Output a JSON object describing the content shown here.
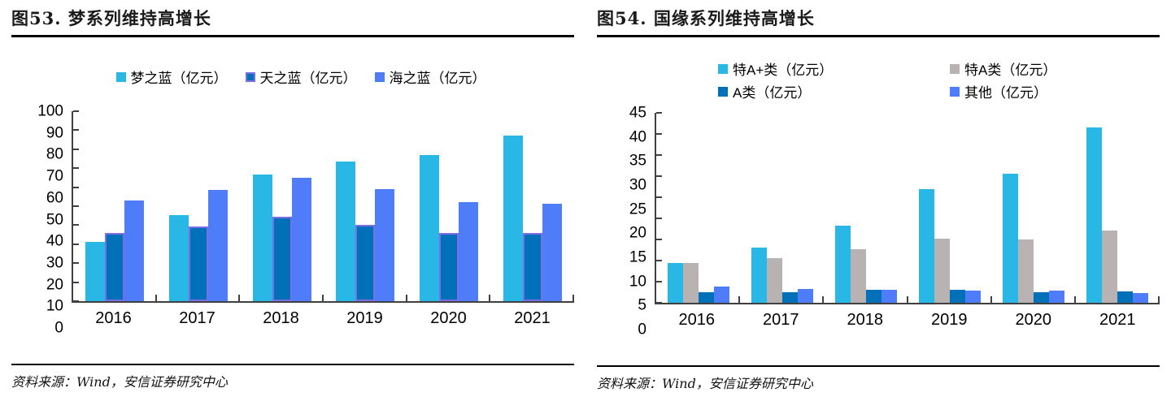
{
  "figure53": {
    "title": "图53. 梦系列维持高增长",
    "source": "资料来源：Wind，安信证券研究中心"
  },
  "figure54": {
    "title": "图54. 国缘系列维持高增长",
    "source": "资料来源：Wind，安信证券研究中心"
  },
  "colors": {
    "cyan": "#29B8E5",
    "dark_blue": "#0070B8",
    "royal_blue": "#4F7DFA",
    "gray": "#B8B2B2",
    "purple_outline": "#7C6FE4",
    "axis": "#404040",
    "rule": "#000000"
  },
  "chart_data": [
    {
      "type": "bar",
      "title": "图53. 梦系列维持高增长",
      "categories": [
        "2016",
        "2017",
        "2018",
        "2019",
        "2020",
        "2021"
      ],
      "series": [
        {
          "name": "梦之蓝（亿元）",
          "color": "#29B8E5",
          "values": [
            31,
            45.5,
            66.5,
            73.5,
            77,
            87
          ]
        },
        {
          "name": "天之蓝（亿元）",
          "color": "#0070B8",
          "border": "#7C6FE4",
          "values": [
            36,
            39.5,
            44.5,
            40,
            36,
            36
          ]
        },
        {
          "name": "海之蓝（亿元）",
          "color": "#4F7DFA",
          "values": [
            53,
            58.5,
            65,
            59,
            52,
            51.5
          ]
        }
      ],
      "xlabel": "",
      "ylabel": "",
      "ylim": [
        0,
        100
      ],
      "ystep": 10,
      "grid": false,
      "legend_position": "top",
      "legend_layout": "row"
    },
    {
      "type": "bar",
      "title": "图54. 国缘系列维持高增长",
      "categories": [
        "2016",
        "2017",
        "2018",
        "2019",
        "2020",
        "2021"
      ],
      "series": [
        {
          "name": "特A+类（亿元）",
          "color": "#29B8E5",
          "values": [
            9.4,
            13,
            18.3,
            27,
            30.5,
            41.5
          ]
        },
        {
          "name": "特A类（亿元）",
          "color": "#B8B2B2",
          "values": [
            9.5,
            10.5,
            12.7,
            15.2,
            15,
            17.2
          ]
        },
        {
          "name": "A类（亿元）",
          "color": "#0070B8",
          "values": [
            2.5,
            2.5,
            3.1,
            3.1,
            2.5,
            2.6
          ]
        },
        {
          "name": "其他（亿元）",
          "color": "#4F7DFA",
          "values": [
            3.9,
            3.3,
            3,
            2.9,
            2.9,
            2.3
          ]
        }
      ],
      "xlabel": "",
      "ylabel": "",
      "ylim": [
        0,
        45
      ],
      "ystep": 5,
      "grid": false,
      "legend_position": "top",
      "legend_layout": "grid-2col"
    }
  ]
}
